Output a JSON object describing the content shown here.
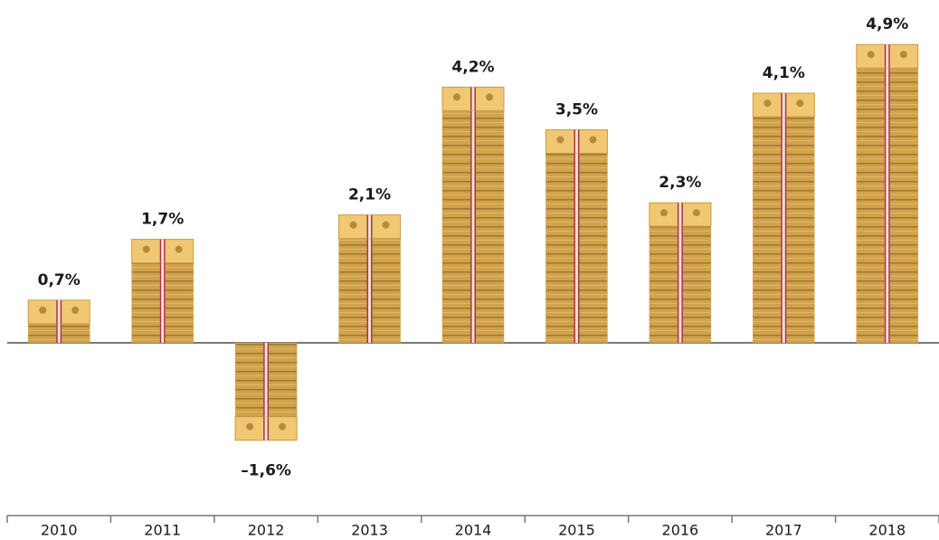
{
  "chart_data": {
    "type": "bar",
    "categories": [
      "2010",
      "2011",
      "2012",
      "2013",
      "2014",
      "2015",
      "2016",
      "2017",
      "2018"
    ],
    "values": [
      0.7,
      1.7,
      -1.6,
      2.1,
      4.2,
      3.5,
      2.3,
      4.1,
      4.9
    ],
    "value_labels": [
      "0,7%",
      "1,7%",
      "–1,6%",
      "2,1%",
      "4,2%",
      "3,5%",
      "2,3%",
      "4,1%",
      "4,9%"
    ],
    "color": "#d2a24a"
  }
}
